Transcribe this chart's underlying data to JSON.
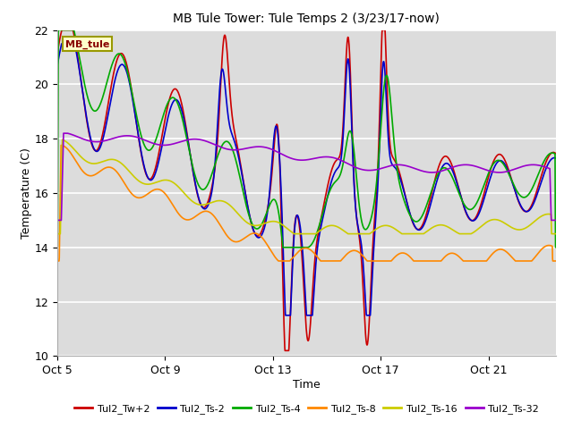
{
  "title": "MB Tule Tower: Tule Temps 2 (3/23/17-now)",
  "xlabel": "Time",
  "ylabel": "Temperature (C)",
  "ylim": [
    10,
    22
  ],
  "xlim": [
    0,
    18.5
  ],
  "yticks": [
    10,
    12,
    14,
    16,
    18,
    20,
    22
  ],
  "xtick_positions": [
    0,
    4,
    8,
    12,
    16
  ],
  "xtick_labels": [
    "Oct 5",
    "Oct 9",
    "Oct 13",
    "Oct 17",
    "Oct 21"
  ],
  "bg_color": "#dcdcdc",
  "fig_color": "#ffffff",
  "annotation_label": "MB_tule",
  "series": [
    {
      "label": "Tul2_Tw+2",
      "color": "#cc0000"
    },
    {
      "label": "Tul2_Ts-2",
      "color": "#0000cc"
    },
    {
      "label": "Tul2_Ts-4",
      "color": "#00aa00"
    },
    {
      "label": "Tul2_Ts-8",
      "color": "#ff8800"
    },
    {
      "label": "Tul2_Ts-16",
      "color": "#cccc00"
    },
    {
      "label": "Tul2_Ts-32",
      "color": "#9900cc"
    }
  ],
  "linewidth": 1.2
}
